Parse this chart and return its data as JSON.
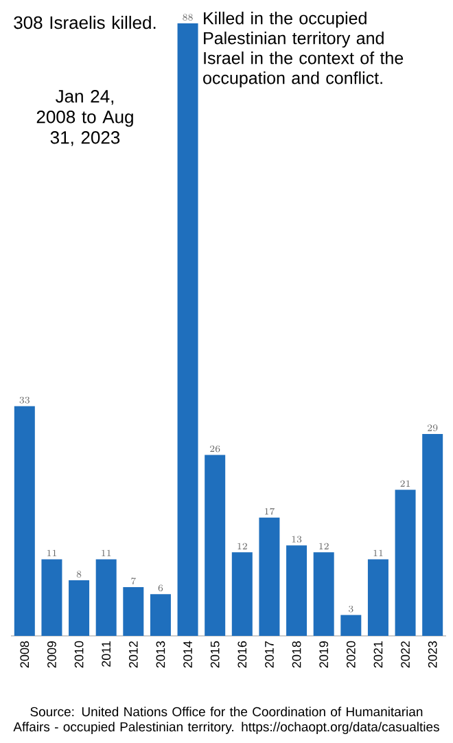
{
  "chart_data": {
    "type": "bar",
    "title": "308 Israelis killed.",
    "subtitle": "Jan 24, 2008 to Aug 31, 2023",
    "annotations": [
      "Killed in the occupied Palestinian territory and Israel in the context of the occupation and conflict.",
      "Source: United Nations Office for the Coordination of Humanitarian Affairs - occupied Palestinian territory. https://ochaopt.org/data/casualties"
    ],
    "categories": [
      "2008",
      "2009",
      "2010",
      "2011",
      "2012",
      "2013",
      "2014",
      "2015",
      "2016",
      "2017",
      "2018",
      "2019",
      "2020",
      "2021",
      "2022",
      "2023"
    ],
    "values": [
      33,
      11,
      8,
      11,
      7,
      6,
      88,
      26,
      12,
      17,
      13,
      12,
      3,
      11,
      21,
      29
    ],
    "color": "#1f6fbd",
    "data_labels": true
  }
}
